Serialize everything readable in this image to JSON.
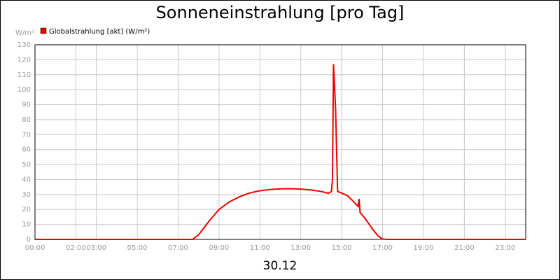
{
  "chart_data": {
    "type": "line",
    "title": "Sonneneinstrahlung [pro Tag]",
    "y_unit": "W/m²",
    "xlabel": "30.12",
    "x": [
      0,
      7.7,
      8.0,
      8.5,
      9.0,
      9.5,
      10.0,
      10.5,
      11.0,
      11.5,
      12.0,
      12.5,
      13.0,
      13.5,
      14.0,
      14.35,
      14.5,
      14.55,
      14.6,
      14.7,
      14.8,
      15.0,
      15.3,
      15.6,
      15.8,
      15.85,
      15.9,
      16.2,
      16.5,
      16.8,
      17.0,
      17.2,
      24
    ],
    "series": [
      {
        "name": "Globalstrahlung [akt] (W/m²)",
        "color": "#ee0000",
        "values": [
          0,
          0,
          3,
          12,
          20,
          25,
          28.5,
          31,
          32.5,
          33.3,
          33.8,
          33.9,
          33.6,
          33,
          32,
          30.8,
          32,
          40,
          117,
          88,
          32,
          31,
          29,
          25,
          22,
          27,
          18,
          13,
          7,
          2,
          0.3,
          0,
          0
        ]
      }
    ],
    "xlim": [
      0,
      24
    ],
    "xticks": [
      {
        "value": 0,
        "label": "00:00"
      },
      {
        "value": 2,
        "label": "02:00"
      },
      {
        "value": 3,
        "label": "03:00"
      },
      {
        "value": 5,
        "label": "05:00"
      },
      {
        "value": 7,
        "label": "07:00"
      },
      {
        "value": 9,
        "label": "09:00"
      },
      {
        "value": 11,
        "label": "11:00"
      },
      {
        "value": 13,
        "label": "13:00"
      },
      {
        "value": 15,
        "label": "15:00"
      },
      {
        "value": 17,
        "label": "17:00"
      },
      {
        "value": 19,
        "label": "19:00"
      },
      {
        "value": 21,
        "label": "21:00"
      },
      {
        "value": 23,
        "label": "23:00"
      }
    ],
    "ylim": [
      0,
      130
    ],
    "yticks": [
      0,
      10,
      20,
      30,
      40,
      50,
      60,
      70,
      80,
      90,
      100,
      110,
      120,
      130
    ],
    "grid": true
  }
}
